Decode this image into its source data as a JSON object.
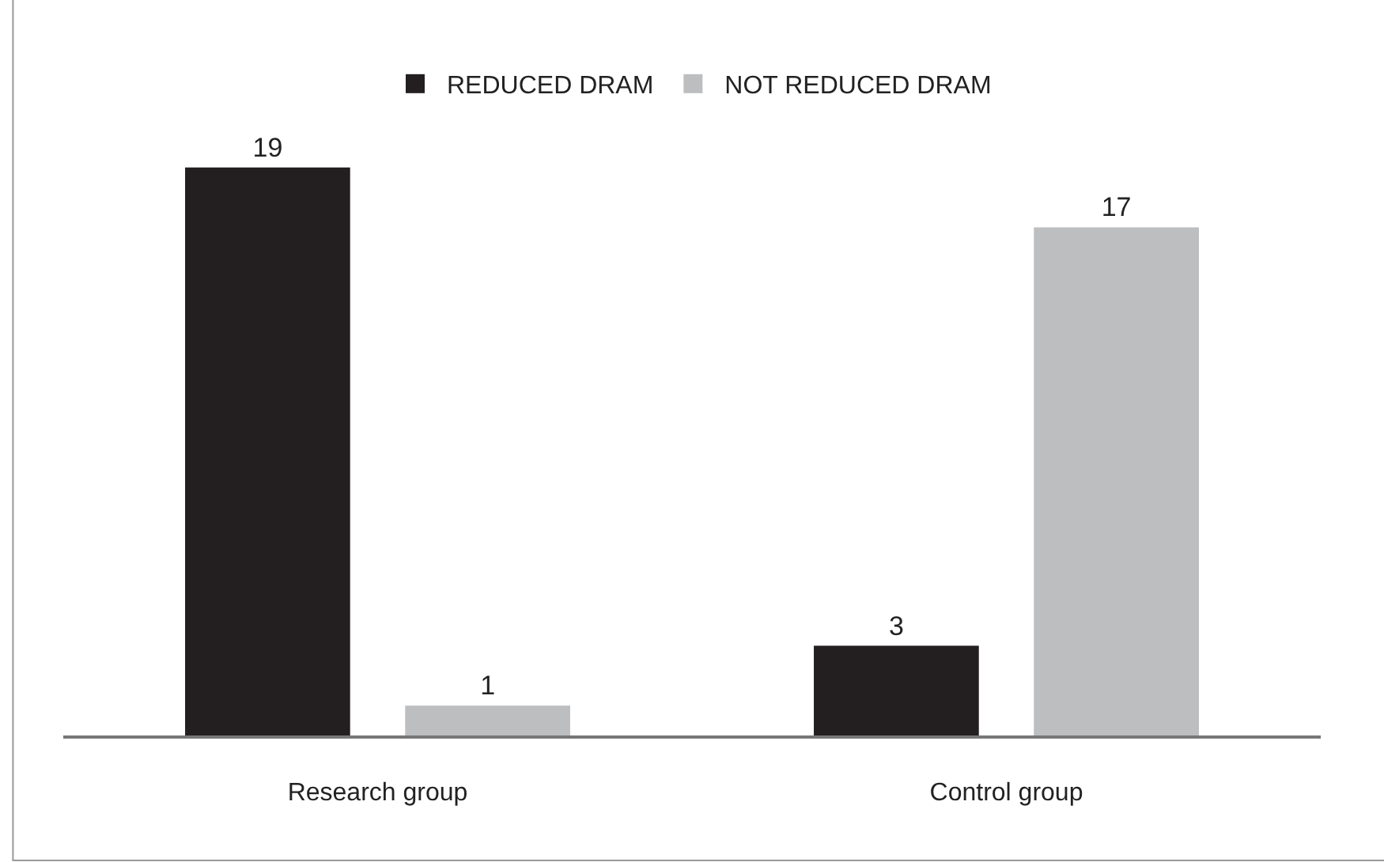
{
  "chart_data": {
    "type": "bar",
    "categories": [
      "Research group",
      "Control group"
    ],
    "series": [
      {
        "name": "REDUCED DRAM",
        "color": "#231f20",
        "values": [
          19,
          3
        ]
      },
      {
        "name": "NOT REDUCED DRAM",
        "color": "#bcbec0",
        "values": [
          1,
          17
        ]
      }
    ],
    "data_labels": true,
    "legend": "top"
  }
}
